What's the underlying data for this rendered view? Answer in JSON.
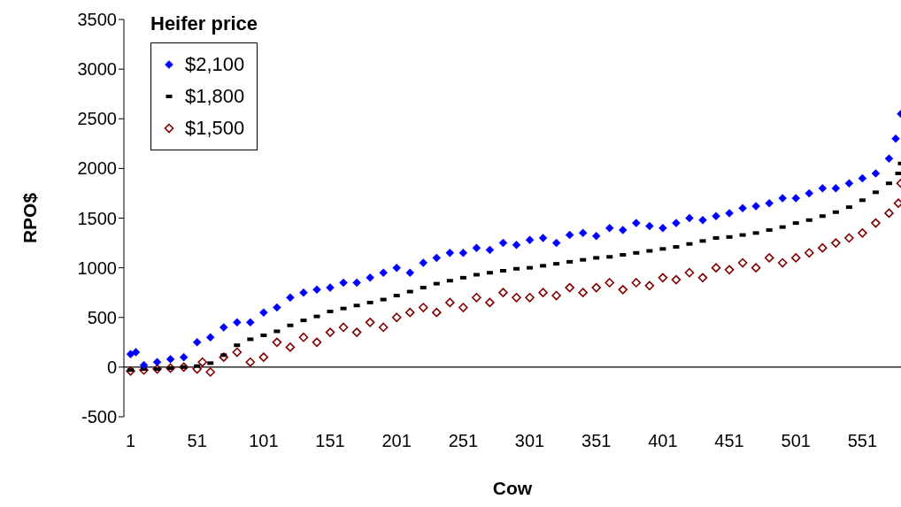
{
  "chart_data": {
    "type": "scatter",
    "xlabel": "Cow",
    "ylabel": "RPO$",
    "legend_title": "Heifer price",
    "legend": "top left",
    "grid": false,
    "xlim": [
      -4,
      580
    ],
    "xticks": [
      1,
      51,
      101,
      151,
      201,
      251,
      301,
      351,
      401,
      451,
      501,
      551
    ],
    "ylim": [
      -500,
      3500
    ],
    "yticks": [
      -500,
      0,
      500,
      1000,
      1500,
      2000,
      2500,
      3000,
      3500
    ],
    "ref_lines": [
      {
        "axis": "y",
        "value": 0,
        "color": "#000000"
      }
    ],
    "series": [
      {
        "name": "$2,100",
        "color": "#0000ff",
        "marker": "diamond",
        "x": [
          1,
          5,
          11,
          21,
          31,
          41,
          51,
          61,
          71,
          81,
          91,
          101,
          111,
          121,
          131,
          141,
          151,
          161,
          171,
          181,
          191,
          201,
          211,
          221,
          231,
          241,
          251,
          261,
          271,
          281,
          291,
          301,
          311,
          321,
          331,
          341,
          351,
          361,
          371,
          381,
          391,
          401,
          411,
          421,
          431,
          441,
          451,
          461,
          471,
          481,
          491,
          501,
          511,
          521,
          531,
          541,
          551,
          561,
          571,
          576,
          580
        ],
        "values": [
          130,
          150,
          20,
          50,
          80,
          100,
          250,
          300,
          400,
          450,
          450,
          550,
          600,
          700,
          750,
          780,
          800,
          850,
          850,
          900,
          950,
          1000,
          950,
          1050,
          1100,
          1150,
          1150,
          1200,
          1180,
          1250,
          1230,
          1280,
          1300,
          1250,
          1330,
          1350,
          1320,
          1400,
          1380,
          1450,
          1420,
          1400,
          1450,
          1500,
          1480,
          1520,
          1550,
          1600,
          1620,
          1650,
          1700,
          1700,
          1750,
          1800,
          1800,
          1850,
          1900,
          1950,
          2100,
          2300,
          2550
        ]
      },
      {
        "name": "$1,800",
        "color": "#000000",
        "marker": "square",
        "x": [
          1,
          11,
          21,
          31,
          41,
          51,
          61,
          71,
          81,
          91,
          101,
          111,
          121,
          131,
          141,
          151,
          161,
          171,
          181,
          191,
          201,
          211,
          221,
          231,
          241,
          251,
          261,
          271,
          281,
          291,
          301,
          311,
          321,
          331,
          341,
          351,
          361,
          371,
          381,
          391,
          401,
          411,
          421,
          431,
          441,
          451,
          461,
          471,
          481,
          491,
          501,
          511,
          521,
          531,
          541,
          551,
          561,
          571,
          578,
          580
        ],
        "values": [
          -30,
          -20,
          -20,
          -10,
          0,
          10,
          40,
          120,
          220,
          280,
          320,
          360,
          420,
          470,
          510,
          560,
          590,
          620,
          650,
          680,
          720,
          760,
          800,
          840,
          870,
          900,
          930,
          950,
          970,
          990,
          1000,
          1020,
          1040,
          1060,
          1080,
          1100,
          1110,
          1130,
          1150,
          1170,
          1190,
          1210,
          1240,
          1270,
          1300,
          1310,
          1330,
          1350,
          1380,
          1410,
          1450,
          1480,
          1520,
          1560,
          1610,
          1680,
          1760,
          1850,
          1950,
          2050
        ]
      },
      {
        "name": "$1,500",
        "color": "#800000",
        "marker": "diamond",
        "x": [
          1,
          11,
          21,
          31,
          41,
          51,
          55,
          61,
          71,
          81,
          91,
          101,
          111,
          121,
          131,
          141,
          151,
          161,
          171,
          181,
          191,
          201,
          211,
          221,
          231,
          241,
          251,
          261,
          271,
          281,
          291,
          301,
          311,
          321,
          331,
          341,
          351,
          361,
          371,
          381,
          391,
          401,
          411,
          421,
          431,
          441,
          451,
          461,
          471,
          481,
          491,
          501,
          511,
          521,
          531,
          541,
          551,
          561,
          571,
          578,
          580
        ],
        "values": [
          -40,
          -30,
          -20,
          -10,
          0,
          -20,
          50,
          -50,
          100,
          150,
          50,
          100,
          250,
          200,
          300,
          250,
          350,
          400,
          350,
          450,
          400,
          500,
          550,
          600,
          550,
          650,
          600,
          700,
          650,
          750,
          700,
          700,
          750,
          720,
          800,
          750,
          800,
          850,
          780,
          850,
          820,
          900,
          880,
          950,
          900,
          1000,
          980,
          1050,
          1000,
          1100,
          1050,
          1100,
          1150,
          1200,
          1250,
          1300,
          1350,
          1450,
          1550,
          1650,
          1850
        ]
      }
    ]
  }
}
